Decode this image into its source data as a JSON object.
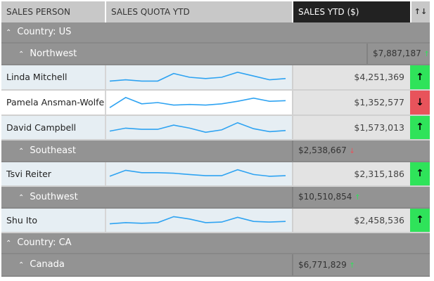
{
  "columns": {
    "person": "SALES PERSON",
    "quota": "SALES QUOTA YTD",
    "sales": "SALES YTD ($)",
    "sort_icon": "↑↓"
  },
  "colors": {
    "up": "#2fe35a",
    "down": "#e8535b",
    "spark": "#2ea3f2",
    "header_active": "#222222"
  },
  "groups": {
    "us": {
      "label": "Country: US"
    },
    "northwest": {
      "label": "Northwest",
      "total": "$7,887,187",
      "trend": "up"
    },
    "southeast": {
      "label": "Southeast",
      "total": "$2,538,667",
      "trend": "down"
    },
    "southwest": {
      "label": "Southwest",
      "total": "$10,510,854",
      "trend": "up"
    },
    "ca": {
      "label": "Country: CA"
    },
    "canada": {
      "label": "Canada",
      "total": "$6,771,829",
      "trend": "up"
    }
  },
  "people": [
    {
      "name": "Linda Mitchell",
      "sales": "$4,251,369",
      "trend": "up",
      "spark": [
        0.2,
        0.3,
        0.2,
        0.2,
        0.8,
        0.5,
        0.4,
        0.5,
        0.9,
        0.6,
        0.3,
        0.4
      ]
    },
    {
      "name": "Pamela Ansman-Wolfe",
      "sales": "$1,352,577",
      "trend": "down",
      "spark": [
        0.1,
        0.9,
        0.4,
        0.5,
        0.3,
        0.35,
        0.3,
        0.4,
        0.6,
        0.85,
        0.6,
        0.65
      ]
    },
    {
      "name": "David Campbell",
      "sales": "$1,573,013",
      "trend": "up",
      "spark": [
        0.2,
        0.45,
        0.35,
        0.35,
        0.7,
        0.45,
        0.1,
        0.3,
        0.9,
        0.4,
        0.15,
        0.25
      ]
    },
    {
      "name": "Tsvi Reiter",
      "sales": "$2,315,186",
      "trend": "up",
      "spark": [
        0.3,
        0.8,
        0.6,
        0.6,
        0.55,
        0.45,
        0.35,
        0.35,
        0.85,
        0.45,
        0.3,
        0.35
      ]
    },
    {
      "name": "Shu Ito",
      "sales": "$2,458,536",
      "trend": "up",
      "spark": [
        0.2,
        0.3,
        0.25,
        0.3,
        0.8,
        0.6,
        0.3,
        0.35,
        0.75,
        0.4,
        0.35,
        0.4
      ]
    }
  ],
  "arrows": {
    "up": "↑",
    "down": "↓",
    "collapse": "^"
  }
}
